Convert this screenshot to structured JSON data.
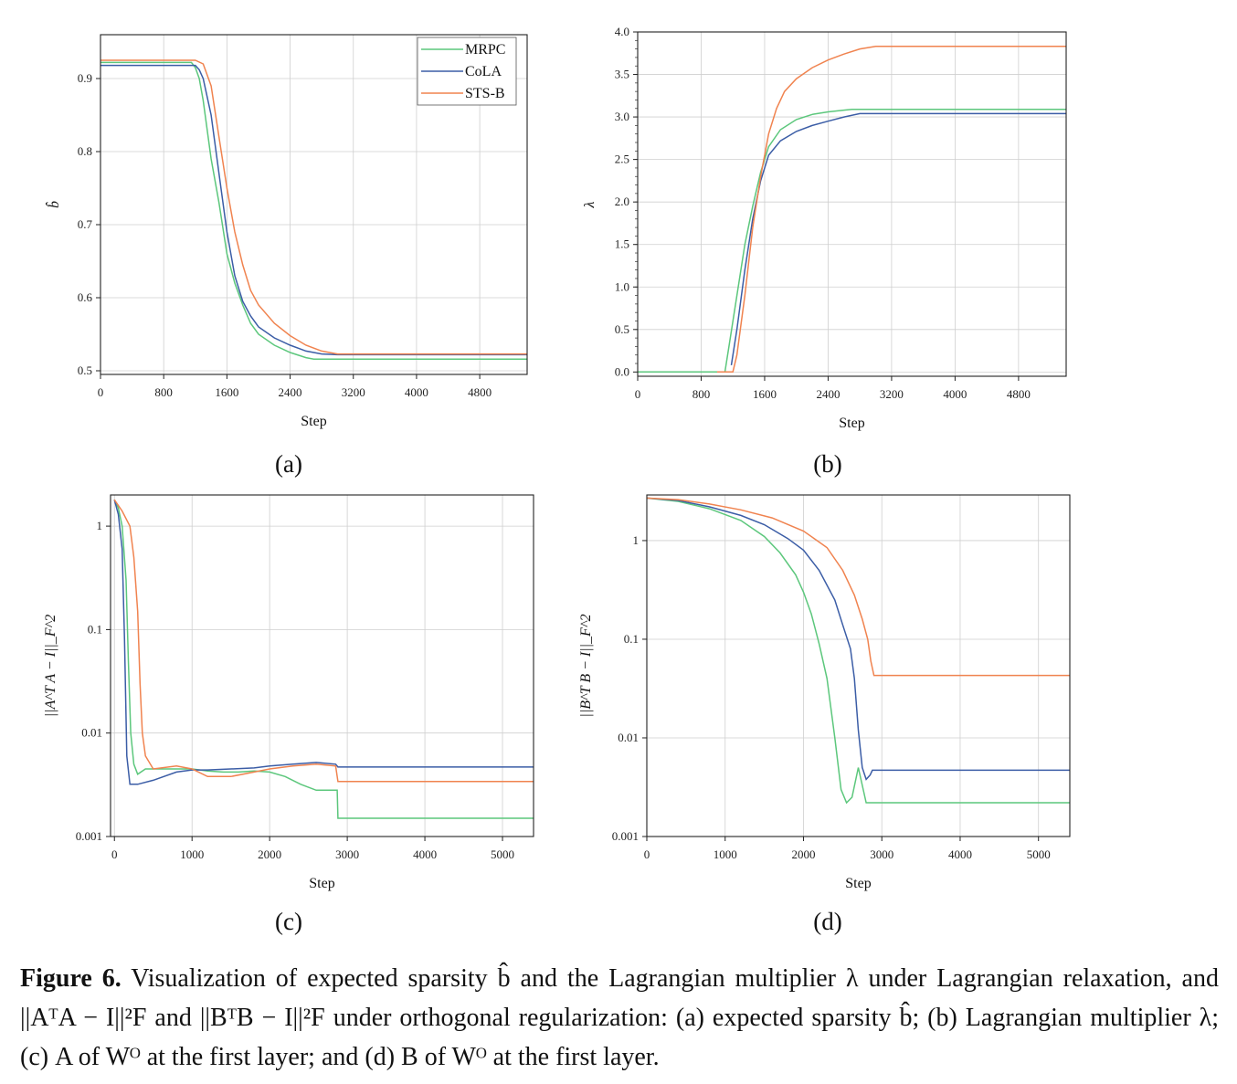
{
  "colors": {
    "MRPC": "#5cc77c",
    "CoLA": "#3b5da6",
    "STS-B": "#f0834f"
  },
  "chart_data": [
    {
      "id": "a",
      "type": "line",
      "panel_label": "(a)",
      "xlabel": "Step",
      "ylabel": "b̂",
      "xlim": [
        0,
        5400
      ],
      "ylim": [
        0.495,
        0.96
      ],
      "xticks": [
        0,
        800,
        1600,
        2400,
        3200,
        4000,
        4800
      ],
      "yticks": [
        0.5,
        0.6,
        0.7,
        0.8,
        0.9
      ],
      "ytick_labels": [
        "0.5",
        "0.6",
        "0.7",
        "0.8",
        "0.9"
      ],
      "grid": true,
      "legend": "top-right",
      "series": [
        {
          "name": "MRPC",
          "x": [
            0,
            1150,
            1200,
            1250,
            1300,
            1400,
            1500,
            1600,
            1700,
            1800,
            1900,
            2000,
            2200,
            2400,
            2600,
            2700,
            5400
          ],
          "y": [
            0.922,
            0.922,
            0.915,
            0.9,
            0.87,
            0.79,
            0.73,
            0.66,
            0.62,
            0.59,
            0.565,
            0.55,
            0.535,
            0.525,
            0.518,
            0.516,
            0.516
          ]
        },
        {
          "name": "CoLA",
          "x": [
            0,
            1200,
            1250,
            1300,
            1400,
            1500,
            1600,
            1700,
            1800,
            1900,
            2000,
            2200,
            2400,
            2600,
            2800,
            3000,
            5400
          ],
          "y": [
            0.918,
            0.918,
            0.912,
            0.9,
            0.85,
            0.77,
            0.69,
            0.63,
            0.595,
            0.575,
            0.56,
            0.545,
            0.535,
            0.527,
            0.523,
            0.522,
            0.522
          ]
        },
        {
          "name": "STS-B",
          "x": [
            0,
            1200,
            1300,
            1400,
            1500,
            1600,
            1700,
            1800,
            1900,
            2000,
            2200,
            2400,
            2600,
            2800,
            3000,
            5400
          ],
          "y": [
            0.925,
            0.925,
            0.92,
            0.89,
            0.82,
            0.75,
            0.69,
            0.645,
            0.61,
            0.59,
            0.565,
            0.548,
            0.535,
            0.527,
            0.523,
            0.523
          ]
        }
      ]
    },
    {
      "id": "b",
      "type": "line",
      "panel_label": "(b)",
      "xlabel": "Step",
      "ylabel": "λ",
      "xlim": [
        0,
        5400
      ],
      "ylim": [
        -0.05,
        4.0
      ],
      "xticks": [
        0,
        800,
        1600,
        2400,
        3200,
        4000,
        4800
      ],
      "yticks": [
        0.0,
        0.5,
        1.0,
        1.5,
        2.0,
        2.5,
        3.0,
        3.5,
        4.0
      ],
      "ytick_labels": [
        "0.0",
        "0.5",
        "1.0",
        "1.5",
        "2.0",
        "2.5",
        "3.0",
        "3.5",
        "4.0"
      ],
      "grid": true,
      "series": [
        {
          "name": "MRPC",
          "x": [
            0,
            1100,
            1150,
            1250,
            1350,
            1450,
            1550,
            1650,
            1800,
            2000,
            2200,
            2400,
            2600,
            2700,
            5400
          ],
          "y": [
            0.0,
            0.0,
            0.3,
            0.9,
            1.5,
            1.95,
            2.35,
            2.65,
            2.85,
            2.97,
            3.03,
            3.06,
            3.08,
            3.09,
            3.09
          ]
        },
        {
          "name": "CoLA",
          "x": [
            1180,
            1250,
            1350,
            1450,
            1550,
            1650,
            1800,
            2000,
            2200,
            2400,
            2600,
            2800,
            5400
          ],
          "y": [
            0.08,
            0.5,
            1.2,
            1.8,
            2.25,
            2.55,
            2.72,
            2.83,
            2.9,
            2.95,
            3.0,
            3.04,
            3.04
          ]
        },
        {
          "name": "STS-B",
          "x": [
            1000,
            1200,
            1250,
            1350,
            1450,
            1550,
            1650,
            1750,
            1850,
            2000,
            2200,
            2400,
            2600,
            2800,
            3000,
            5400
          ],
          "y": [
            0.0,
            0.0,
            0.2,
            0.9,
            1.7,
            2.3,
            2.8,
            3.1,
            3.3,
            3.45,
            3.58,
            3.67,
            3.74,
            3.8,
            3.83,
            3.83
          ]
        }
      ]
    },
    {
      "id": "c",
      "type": "line",
      "panel_label": "(c)",
      "xlabel": "Step",
      "ylabel": "||A^T A − I||_F^2",
      "yscale": "log",
      "xlim": [
        -50,
        5400
      ],
      "ylim": [
        0.001,
        2.0
      ],
      "xticks": [
        0,
        1000,
        2000,
        3000,
        4000,
        5000
      ],
      "yticks": [
        0.001,
        0.01,
        0.1,
        1
      ],
      "ytick_labels": [
        "0.001",
        "0.01",
        "0.1",
        "1"
      ],
      "grid": true,
      "series": [
        {
          "name": "MRPC",
          "x": [
            0,
            50,
            100,
            150,
            180,
            210,
            250,
            300,
            400,
            600,
            800,
            1000,
            1200,
            1400,
            1600,
            1800,
            2000,
            2200,
            2400,
            2600,
            2800,
            2870,
            2880,
            5400
          ],
          "y": [
            1.8,
            1.5,
            1.0,
            0.3,
            0.05,
            0.01,
            0.005,
            0.004,
            0.0045,
            0.0045,
            0.0045,
            0.0045,
            0.0043,
            0.0042,
            0.0042,
            0.0043,
            0.0042,
            0.0038,
            0.0032,
            0.0028,
            0.0028,
            0.0028,
            0.0015,
            0.0015
          ]
        },
        {
          "name": "CoLA",
          "x": [
            0,
            50,
            100,
            130,
            160,
            200,
            300,
            500,
            800,
            1000,
            1200,
            1500,
            1800,
            2000,
            2300,
            2600,
            2850,
            2880,
            5400
          ],
          "y": [
            1.8,
            1.3,
            0.6,
            0.08,
            0.006,
            0.0032,
            0.0032,
            0.0035,
            0.0042,
            0.0044,
            0.0044,
            0.0045,
            0.0046,
            0.0048,
            0.005,
            0.0052,
            0.005,
            0.0047,
            0.0047
          ]
        },
        {
          "name": "STS-B",
          "x": [
            0,
            100,
            200,
            250,
            300,
            330,
            360,
            400,
            500,
            800,
            1000,
            1200,
            1500,
            1800,
            2000,
            2300,
            2600,
            2850,
            2880,
            5400
          ],
          "y": [
            1.8,
            1.4,
            1.0,
            0.5,
            0.15,
            0.03,
            0.01,
            0.006,
            0.0045,
            0.0048,
            0.0045,
            0.0038,
            0.0038,
            0.0042,
            0.0045,
            0.0048,
            0.005,
            0.0048,
            0.0034,
            0.0034
          ]
        }
      ]
    },
    {
      "id": "d",
      "type": "line",
      "panel_label": "(d)",
      "xlabel": "Step",
      "ylabel": "||B^T B − I||_F^2",
      "yscale": "log",
      "xlim": [
        0,
        5400
      ],
      "ylim": [
        0.001,
        2.9
      ],
      "xticks": [
        0,
        1000,
        2000,
        3000,
        4000,
        5000
      ],
      "yticks": [
        0.001,
        0.01,
        0.1,
        1
      ],
      "ytick_labels": [
        "0.001",
        "0.01",
        "0.1",
        "1"
      ],
      "grid": true,
      "series": [
        {
          "name": "MRPC",
          "x": [
            0,
            400,
            800,
            1200,
            1500,
            1700,
            1900,
            2000,
            2100,
            2200,
            2300,
            2400,
            2480,
            2550,
            2620,
            2700,
            2800,
            5400
          ],
          "y": [
            2.7,
            2.5,
            2.1,
            1.6,
            1.1,
            0.75,
            0.45,
            0.3,
            0.18,
            0.09,
            0.04,
            0.01,
            0.003,
            0.0022,
            0.0025,
            0.005,
            0.0022,
            0.0022
          ]
        },
        {
          "name": "CoLA",
          "x": [
            0,
            400,
            800,
            1200,
            1500,
            1800,
            2000,
            2200,
            2400,
            2500,
            2600,
            2650,
            2700,
            2750,
            2800,
            2850,
            2880,
            5400
          ],
          "y": [
            2.7,
            2.55,
            2.2,
            1.8,
            1.45,
            1.05,
            0.8,
            0.5,
            0.25,
            0.14,
            0.08,
            0.04,
            0.012,
            0.005,
            0.0038,
            0.0042,
            0.0047,
            0.0047
          ]
        },
        {
          "name": "STS-B",
          "x": [
            0,
            400,
            800,
            1200,
            1600,
            2000,
            2300,
            2500,
            2650,
            2750,
            2820,
            2860,
            2900,
            5400
          ],
          "y": [
            2.7,
            2.6,
            2.35,
            2.05,
            1.7,
            1.25,
            0.85,
            0.5,
            0.28,
            0.16,
            0.1,
            0.06,
            0.043,
            0.043
          ]
        }
      ]
    }
  ],
  "caption": {
    "lead": "Figure 6.",
    "text": " Visualization of expected sparsity b̂ and the Lagrangian multiplier λ under Lagrangian relaxation, and ||AᵀA − I||²F and ||BᵀB − I||²F under orthogonal regularization: (a) expected sparsity b̂; (b) Lagrangian multiplier λ; (c) A of Wᴼ at the first layer; and (d) B of Wᴼ at the first layer."
  }
}
